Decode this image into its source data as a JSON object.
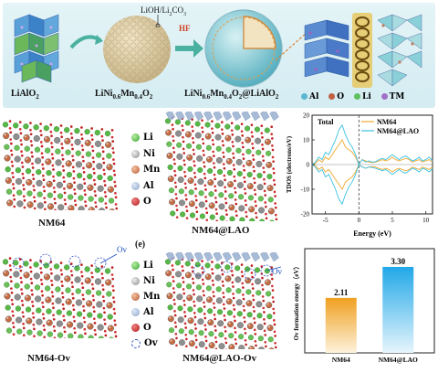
{
  "top_scheme": {
    "lialo2_label": "LiAlO",
    "lialo2_sub": "2",
    "nm_label": "LiNi",
    "nm_sub1": "0.6",
    "nm_mid": "Mn",
    "nm_sub2": "0.4",
    "nm_end": "O",
    "nm_sub3": "2",
    "coated_label": "LiNi",
    "coated_sub1": "0.6",
    "coated_mid": "Mn",
    "coated_sub2": "0.4",
    "coated_mid2": "O",
    "coated_sub3": "2",
    "coated_end": "@LiAlO",
    "coated_sub4": "2",
    "reagent_label": "LiOH/Li",
    "reagent_sub": "2",
    "reagent_end": "CO",
    "reagent_sub2": "3",
    "hf_label": "HF",
    "legend": [
      "Al",
      "O",
      "Li",
      "TM"
    ]
  },
  "structures": {
    "nm64": "NM64",
    "nm64_lao": "NM64@LAO",
    "nm64_ov": "NM64-Ov",
    "nm64_lao_ov": "NM64@LAO-Ov",
    "ov_tag": "Ov",
    "ov_tag2": "Ov",
    "legend_top": [
      "Li",
      "Ni",
      "Mn",
      "Al",
      "O"
    ],
    "legend_bottom": [
      "Li",
      "Ni",
      "Mn",
      "Al",
      "O",
      "Ov"
    ],
    "panel_e": "(e)"
  },
  "tdos_chart": {
    "type": "line",
    "title": "Total",
    "xlabel": "Energy (eV)",
    "ylabel": "TDOS (electrons/eV)",
    "xlim": [
      -7,
      11
    ],
    "ylim": [
      -20,
      20
    ],
    "x_ticks": [
      "-5",
      "0",
      "5",
      "10"
    ],
    "y_ticks": [
      "20",
      "10",
      "0",
      "-10",
      "-20"
    ],
    "fermi_level": 0,
    "series": [
      {
        "name": "NM64",
        "color": "#f0a830",
        "x": [
          -7,
          -6.5,
          -6,
          -5.5,
          -5,
          -4.5,
          -4,
          -3.5,
          -3,
          -2.5,
          -2,
          -1.5,
          -1,
          -0.5,
          0,
          0.5,
          1,
          1.5,
          2,
          2.5,
          3,
          3.5,
          4,
          4.5,
          5,
          5.5,
          6,
          6.5,
          7,
          7.5,
          8,
          8.5,
          9,
          9.5,
          10,
          10.5,
          11
        ],
        "up": [
          0,
          0.5,
          2,
          1,
          3,
          2,
          4,
          6,
          8,
          10,
          7,
          6,
          5,
          3,
          0,
          2,
          1.5,
          1,
          0.8,
          1,
          1.5,
          2,
          1.5,
          2,
          3,
          2,
          1.5,
          2,
          2.5,
          2,
          1,
          1.5,
          2,
          1,
          1.5,
          2,
          1
        ],
        "down": [
          0,
          -0.5,
          -2,
          -1,
          -3,
          -2,
          -4,
          -6,
          -8,
          -10,
          -7,
          -6,
          -5,
          -3,
          0,
          -1,
          -1.5,
          -1,
          -0.8,
          -1,
          -1.5,
          -2,
          -1.5,
          -2,
          -3,
          -2,
          -1.5,
          -2,
          -2.5,
          -2,
          -1,
          -1.5,
          -2,
          -1,
          -1.5,
          -2,
          -1
        ]
      },
      {
        "name": "NM64@LAO",
        "color": "#3cc0e0",
        "x": [
          -7,
          -6.5,
          -6,
          -5.5,
          -5,
          -4.5,
          -4,
          -3.5,
          -3,
          -2.5,
          -2,
          -1.5,
          -1,
          -0.5,
          0,
          0.5,
          1,
          1.5,
          2,
          2.5,
          3,
          3.5,
          4,
          4.5,
          5,
          5.5,
          6,
          6.5,
          7,
          7.5,
          8,
          8.5,
          9,
          9.5,
          10,
          10.5,
          11
        ],
        "up": [
          0,
          1,
          3,
          2,
          5,
          4,
          7,
          10,
          14,
          16,
          12,
          9,
          7,
          4,
          0,
          2,
          1,
          1.5,
          1,
          1.2,
          2,
          2.5,
          2,
          3,
          4,
          3,
          2,
          3,
          3.5,
          2.5,
          1.5,
          2,
          3,
          1.5,
          2,
          3,
          1.5
        ],
        "down": [
          0,
          -1,
          -3,
          -2,
          -5,
          -4,
          -7,
          -10,
          -14,
          -16,
          -12,
          -9,
          -7,
          -4,
          0,
          -1,
          -1.5,
          -1,
          -1.2,
          -1.5,
          -2,
          -2.5,
          -2,
          -3,
          -4,
          -3,
          -2,
          -3,
          -3.5,
          -2.5,
          -1.5,
          -2,
          -3,
          -1.5,
          -2,
          -3,
          -1.5
        ]
      }
    ]
  },
  "ov_chart": {
    "type": "bar",
    "ylabel": "Ov formation energy（eV）",
    "categories": [
      "NM64",
      "NM64@LAO"
    ],
    "values": [
      2.11,
      3.3
    ],
    "value_labels": [
      "2.11",
      "3.30"
    ],
    "ylim": [
      0,
      4
    ],
    "colors": [
      "#f0a020",
      "#22a8e8"
    ]
  }
}
